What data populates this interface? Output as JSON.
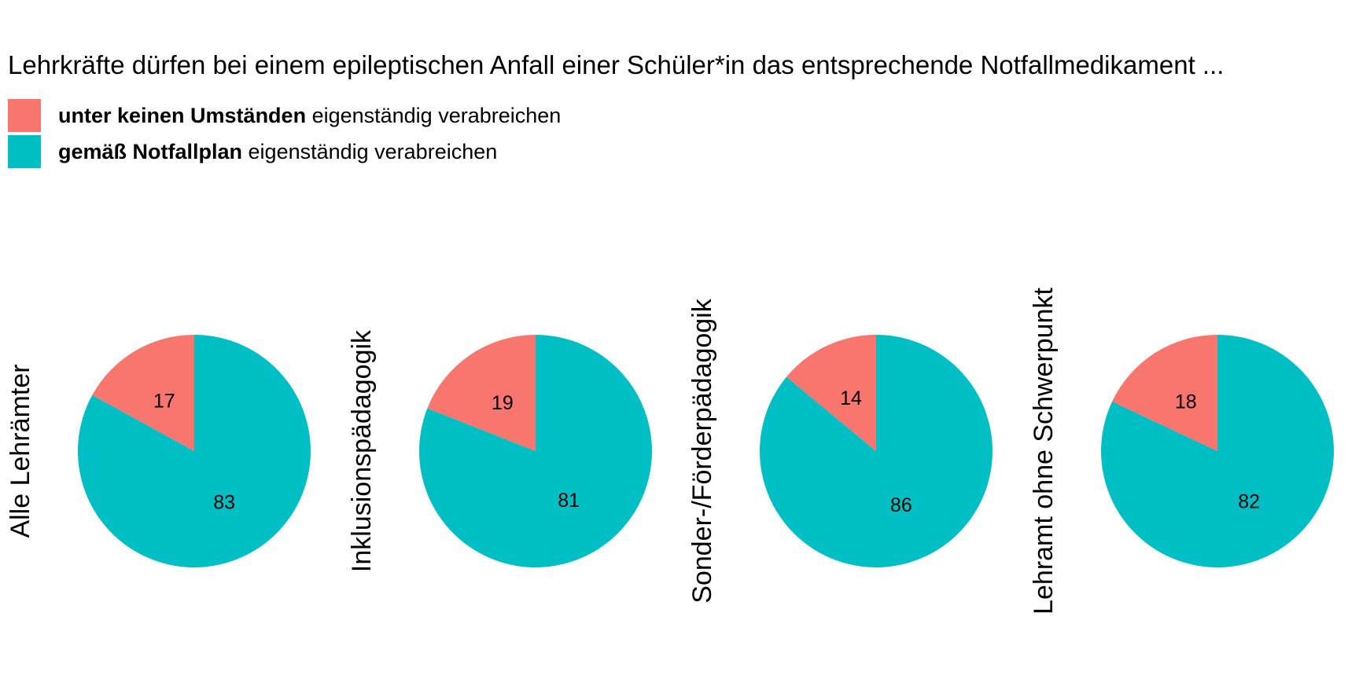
{
  "chart_data": {
    "type": "pie",
    "title": "Lehrkräfte dürfen bei einem epileptischen Anfall einer Schüler*in das entsprechende Notfallmedikament ...",
    "legend": [
      {
        "bold": "unter keinen Umständen",
        "rest": " eigenständig verabreichen",
        "color": "#F8766D"
      },
      {
        "bold": "gemäß Notfallplan",
        "rest": " eigenständig verabreichen",
        "color": "#00BFC4"
      }
    ],
    "facets": [
      {
        "label": "Alle Lehrämter",
        "values": [
          17,
          83
        ]
      },
      {
        "label": "Inklusionspädagogik",
        "values": [
          19,
          81
        ]
      },
      {
        "label": "Sonder-/Förderpädagogik",
        "values": [
          14,
          86
        ]
      },
      {
        "label": "Lehramt ohne Schwerpunkt",
        "values": [
          18,
          82
        ]
      }
    ]
  }
}
